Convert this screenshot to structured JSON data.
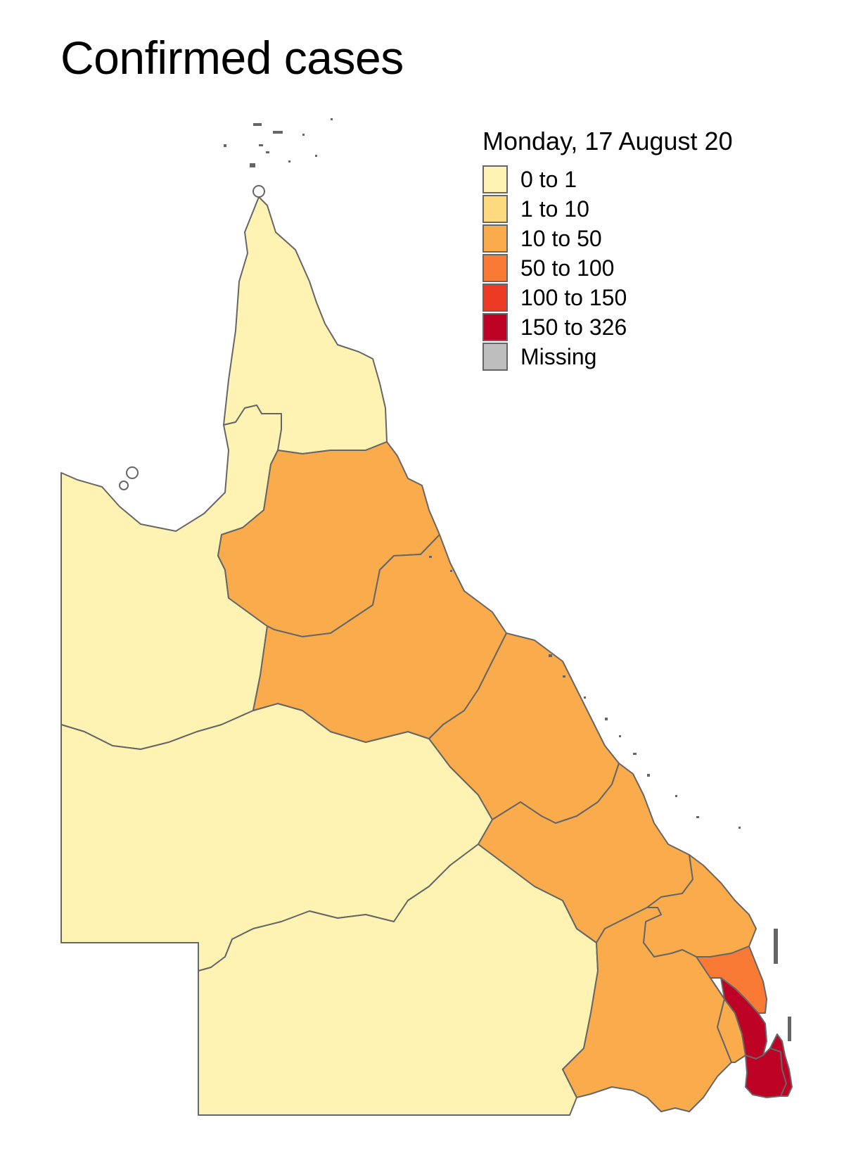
{
  "title": "Confirmed cases",
  "legend": {
    "title": "Monday, 17 August 20",
    "items": [
      {
        "label": "0 to 1",
        "color": "#FEF3B2"
      },
      {
        "label": "1 to 10",
        "color": "#FDDA7E"
      },
      {
        "label": "10 to 50",
        "color": "#FAAC4C"
      },
      {
        "label": "50 to 100",
        "color": "#F87A35"
      },
      {
        "label": "100 to 150",
        "color": "#EC3A24"
      },
      {
        "label": "150 to 326",
        "color": "#BD0226"
      },
      {
        "label": "Missing",
        "color": "#BEBEBE"
      }
    ]
  },
  "colors": {
    "border": "#666666"
  }
}
